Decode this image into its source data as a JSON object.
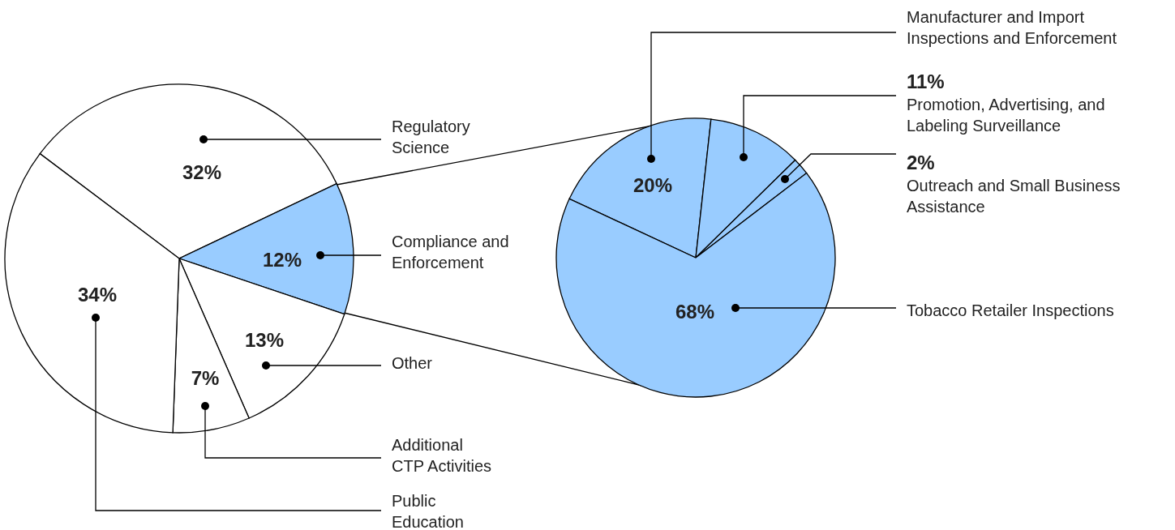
{
  "chart_data": [
    {
      "type": "pie",
      "categories": [
        "Regulatory Science",
        "Compliance and Enforcement",
        "Other",
        "Additional CTP Activities",
        "Public Education"
      ],
      "values": [
        32,
        12,
        13,
        7,
        34
      ],
      "colors": [
        "#ffffff",
        "#99ccff",
        "#ffffff",
        "#ffffff",
        "#ffffff"
      ],
      "value_labels": [
        "32%",
        "12%",
        "13%",
        "7%",
        "34%"
      ]
    },
    {
      "type": "pie",
      "categories": [
        "Manufacturer and Import Inspections and Enforcement",
        "Promotion, Advertising, and Labeling Surveillance",
        "Outreach and Small Business Assistance",
        "Tobacco Retailer Inspections"
      ],
      "values": [
        20,
        11,
        2,
        68
      ],
      "colors": [
        "#99ccff",
        "#99ccff",
        "#99ccff",
        "#99ccff"
      ],
      "value_labels": [
        "20%",
        "11%",
        "2%",
        "68%"
      ]
    }
  ]
}
